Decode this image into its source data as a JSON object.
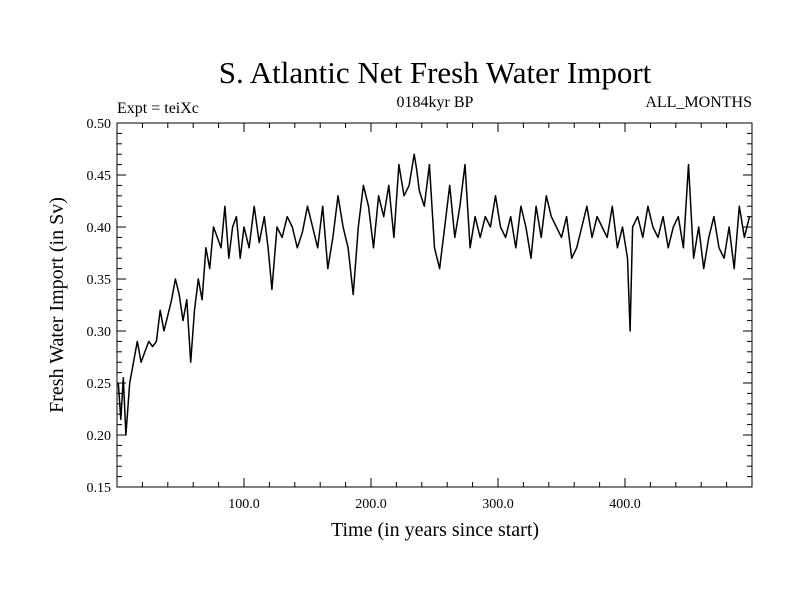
{
  "chart_data": {
    "type": "line",
    "title": "S. Atlantic Net Fresh Water Import",
    "experiment_label": "Expt = teiXc",
    "period_label": "0184kyr BP",
    "months_label": "ALL_MONTHS",
    "xlabel": "Time (in years since start)",
    "ylabel": "Fresh Water Import (in Sv)",
    "xlim": [
      0,
      500
    ],
    "ylim": [
      0.15,
      0.5
    ],
    "x_ticks": [
      {
        "value": 100,
        "label": "100.0"
      },
      {
        "value": 200,
        "label": "200.0"
      },
      {
        "value": 300,
        "label": "300.0"
      },
      {
        "value": 400,
        "label": "400.0"
      }
    ],
    "y_ticks": [
      {
        "value": 0.15,
        "label": "0.15"
      },
      {
        "value": 0.2,
        "label": "0.20"
      },
      {
        "value": 0.25,
        "label": "0.25"
      },
      {
        "value": 0.3,
        "label": "0.30"
      },
      {
        "value": 0.35,
        "label": "0.35"
      },
      {
        "value": 0.4,
        "label": "0.40"
      },
      {
        "value": 0.45,
        "label": "0.45"
      },
      {
        "value": 0.5,
        "label": "0.50"
      }
    ],
    "series": [
      {
        "name": "Net Fresh Water Import",
        "x": [
          1,
          3,
          5,
          7,
          10,
          13,
          16,
          19,
          22,
          25,
          28,
          31,
          34,
          37,
          40,
          43,
          46,
          49,
          52,
          55,
          58,
          61,
          64,
          67,
          70,
          73,
          76,
          79,
          82,
          85,
          88,
          91,
          94,
          97,
          100,
          104,
          108,
          112,
          116,
          119,
          122,
          126,
          130,
          134,
          138,
          142,
          146,
          150,
          154,
          158,
          162,
          166,
          170,
          174,
          178,
          182,
          186,
          190,
          194,
          198,
          202,
          206,
          210,
          214,
          218,
          222,
          226,
          230,
          234,
          236,
          238,
          242,
          246,
          250,
          254,
          258,
          262,
          266,
          270,
          274,
          278,
          282,
          286,
          290,
          294,
          298,
          302,
          306,
          310,
          314,
          318,
          322,
          326,
          330,
          334,
          338,
          342,
          346,
          350,
          354,
          358,
          362,
          366,
          370,
          374,
          378,
          382,
          386,
          390,
          394,
          398,
          402,
          404,
          406,
          410,
          414,
          418,
          422,
          426,
          430,
          434,
          438,
          442,
          446,
          450,
          454,
          458,
          462,
          466,
          470,
          474,
          478,
          482,
          486,
          490,
          494,
          498
        ],
        "values": [
          0.25,
          0.215,
          0.255,
          0.2,
          0.25,
          0.27,
          0.29,
          0.27,
          0.28,
          0.29,
          0.285,
          0.29,
          0.32,
          0.3,
          0.315,
          0.33,
          0.35,
          0.335,
          0.31,
          0.33,
          0.27,
          0.32,
          0.35,
          0.33,
          0.38,
          0.36,
          0.4,
          0.39,
          0.38,
          0.42,
          0.37,
          0.4,
          0.41,
          0.37,
          0.4,
          0.38,
          0.42,
          0.385,
          0.41,
          0.38,
          0.34,
          0.4,
          0.39,
          0.41,
          0.4,
          0.38,
          0.395,
          0.42,
          0.4,
          0.38,
          0.42,
          0.36,
          0.39,
          0.43,
          0.4,
          0.38,
          0.335,
          0.4,
          0.44,
          0.42,
          0.38,
          0.43,
          0.41,
          0.44,
          0.39,
          0.46,
          0.43,
          0.44,
          0.47,
          0.455,
          0.435,
          0.42,
          0.46,
          0.38,
          0.36,
          0.4,
          0.44,
          0.39,
          0.42,
          0.46,
          0.38,
          0.41,
          0.39,
          0.41,
          0.4,
          0.43,
          0.4,
          0.39,
          0.41,
          0.38,
          0.42,
          0.4,
          0.37,
          0.42,
          0.39,
          0.43,
          0.41,
          0.4,
          0.39,
          0.41,
          0.37,
          0.38,
          0.4,
          0.42,
          0.39,
          0.41,
          0.4,
          0.39,
          0.42,
          0.38,
          0.4,
          0.37,
          0.3,
          0.4,
          0.41,
          0.39,
          0.42,
          0.4,
          0.39,
          0.41,
          0.38,
          0.4,
          0.41,
          0.38,
          0.46,
          0.37,
          0.4,
          0.36,
          0.39,
          0.41,
          0.38,
          0.37,
          0.4,
          0.36,
          0.42,
          0.39,
          0.41
        ]
      }
    ]
  }
}
